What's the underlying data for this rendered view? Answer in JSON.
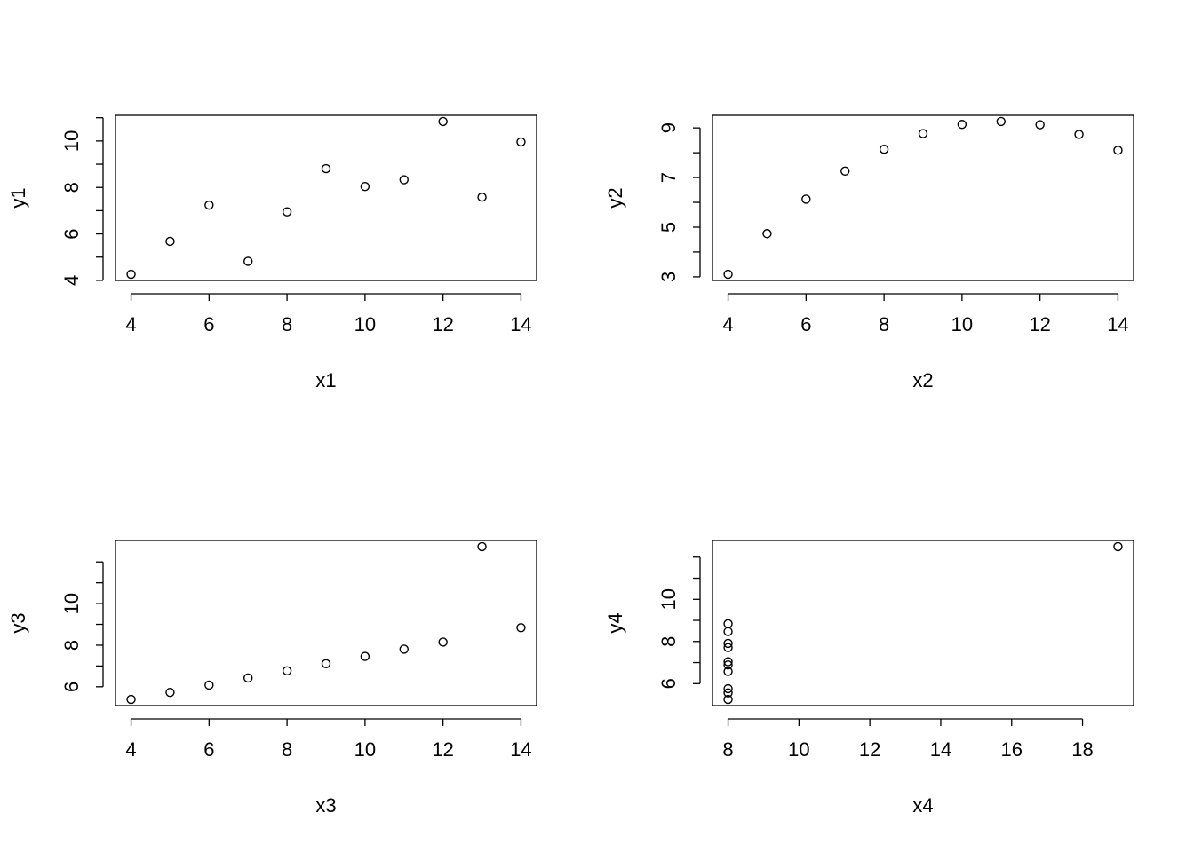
{
  "chart_data": [
    {
      "type": "scatter",
      "xlabel": "x1",
      "ylabel": "y1",
      "x": [
        10,
        8,
        13,
        9,
        11,
        14,
        6,
        4,
        12,
        7,
        5
      ],
      "values": [
        8.04,
        6.95,
        7.58,
        8.81,
        8.33,
        9.96,
        7.24,
        4.26,
        10.84,
        4.82,
        5.68
      ],
      "xlim": [
        3.6,
        14.4
      ],
      "ylim": [
        3.9968,
        11.1032
      ],
      "xticks": [
        4,
        6,
        8,
        10,
        12,
        14
      ],
      "yticks": [
        4,
        6,
        8,
        10
      ],
      "yminor_ticks": [
        5,
        7,
        9,
        11
      ],
      "color": "#000000"
    },
    {
      "type": "scatter",
      "xlabel": "x2",
      "ylabel": "y2",
      "x": [
        10,
        8,
        13,
        9,
        11,
        14,
        6,
        4,
        12,
        7,
        5
      ],
      "values": [
        9.14,
        8.14,
        8.74,
        8.77,
        9.26,
        8.1,
        6.13,
        3.1,
        9.13,
        7.26,
        4.74
      ],
      "xlim": [
        3.6,
        14.4
      ],
      "ylim": [
        2.8536,
        9.5064
      ],
      "xticks": [
        4,
        6,
        8,
        10,
        12,
        14
      ],
      "yticks": [
        3,
        5,
        7,
        9
      ],
      "yminor_ticks": [
        4,
        6,
        8
      ],
      "color": "#000000"
    },
    {
      "type": "scatter",
      "xlabel": "x3",
      "ylabel": "y3",
      "x": [
        10,
        8,
        13,
        9,
        11,
        14,
        6,
        4,
        12,
        7,
        5
      ],
      "values": [
        7.46,
        6.77,
        12.74,
        7.11,
        7.81,
        8.84,
        6.08,
        5.39,
        8.15,
        6.42,
        5.73
      ],
      "xlim": [
        3.6,
        14.4
      ],
      "ylim": [
        5.096,
        13.034
      ],
      "xticks": [
        4,
        6,
        8,
        10,
        12,
        14
      ],
      "yticks": [
        6,
        8,
        10
      ],
      "yminor_ticks": [
        7,
        9,
        11,
        12
      ],
      "color": "#000000"
    },
    {
      "type": "scatter",
      "xlabel": "x4",
      "ylabel": "y4",
      "x": [
        8,
        8,
        8,
        8,
        8,
        8,
        8,
        19,
        8,
        8,
        8
      ],
      "values": [
        6.58,
        5.76,
        7.71,
        8.84,
        8.47,
        7.04,
        5.25,
        12.5,
        5.56,
        7.91,
        6.89
      ],
      "xlim": [
        7.56,
        19.44
      ],
      "ylim": [
        4.96,
        12.79
      ],
      "xticks": [
        8,
        10,
        12,
        14,
        16,
        18
      ],
      "yticks": [
        6,
        8,
        10
      ],
      "yminor_ticks": [
        7,
        9,
        11,
        12
      ],
      "color": "#000000"
    }
  ]
}
